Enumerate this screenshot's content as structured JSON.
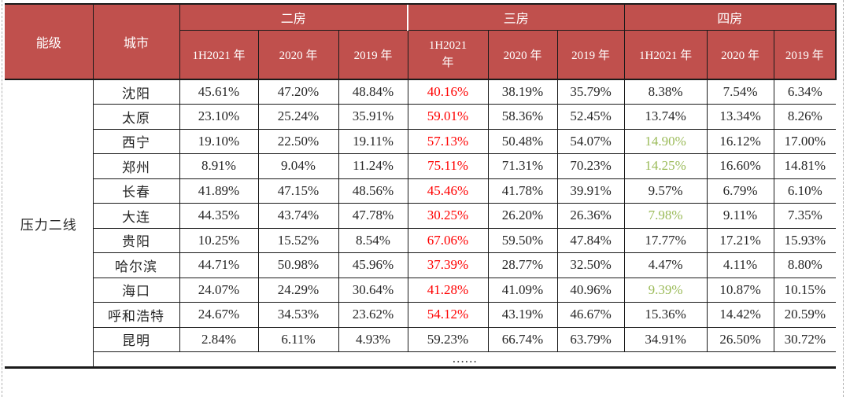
{
  "palette": {
    "header_bg": "#C0504D",
    "header_text": "#FFFFFF",
    "border": "#1A1A1A",
    "highlight_red": "#FF0000",
    "highlight_green": "#9BBB59",
    "body_text": "#262626",
    "guide": "#B3B3B3"
  },
  "chart_data": {
    "type": "table",
    "header": {
      "tier_label": "能级",
      "city_label": "城市",
      "groups": [
        {
          "label": "二房",
          "cols": [
            "1H2021 年",
            "2020 年",
            "2019 年"
          ]
        },
        {
          "label": "三房",
          "cols": [
            "1H2021 年",
            "2020 年",
            "2019 年"
          ]
        },
        {
          "label": "四房",
          "cols": [
            "1H2021 年",
            "2020 年",
            "2019 年"
          ]
        }
      ]
    },
    "tier_group": "压力二线",
    "rows": [
      {
        "city": "沈阳",
        "values": [
          "45.61%",
          "47.20%",
          "48.84%",
          "40.16%",
          "38.19%",
          "35.79%",
          "8.38%",
          "7.54%",
          "6.34%"
        ],
        "colors": [
          "",
          "",
          "",
          "red",
          "",
          "",
          "",
          "",
          ""
        ]
      },
      {
        "city": "太原",
        "values": [
          "23.10%",
          "25.24%",
          "35.91%",
          "59.01%",
          "58.36%",
          "52.45%",
          "13.74%",
          "13.34%",
          "8.26%"
        ],
        "colors": [
          "",
          "",
          "",
          "red",
          "",
          "",
          "",
          "",
          ""
        ]
      },
      {
        "city": "西宁",
        "values": [
          "19.10%",
          "22.50%",
          "19.11%",
          "57.13%",
          "50.48%",
          "54.07%",
          "14.90%",
          "16.12%",
          "17.00%"
        ],
        "colors": [
          "",
          "",
          "",
          "red",
          "",
          "",
          "green",
          "",
          ""
        ]
      },
      {
        "city": "郑州",
        "values": [
          "8.91%",
          "9.04%",
          "11.24%",
          "75.11%",
          "71.31%",
          "70.23%",
          "14.25%",
          "16.60%",
          "14.81%"
        ],
        "colors": [
          "",
          "",
          "",
          "red",
          "",
          "",
          "green",
          "",
          ""
        ]
      },
      {
        "city": "长春",
        "values": [
          "41.89%",
          "47.15%",
          "48.56%",
          "45.46%",
          "41.78%",
          "39.91%",
          "9.57%",
          "6.79%",
          "6.10%"
        ],
        "colors": [
          "",
          "",
          "",
          "red",
          "",
          "",
          "",
          "",
          ""
        ]
      },
      {
        "city": "大连",
        "values": [
          "44.35%",
          "43.74%",
          "47.78%",
          "30.25%",
          "26.20%",
          "26.36%",
          "7.98%",
          "9.11%",
          "7.35%"
        ],
        "colors": [
          "",
          "",
          "",
          "red",
          "",
          "",
          "green",
          "",
          ""
        ]
      },
      {
        "city": "贵阳",
        "values": [
          "10.25%",
          "15.52%",
          "8.54%",
          "67.06%",
          "59.50%",
          "47.84%",
          "17.77%",
          "17.21%",
          "15.93%"
        ],
        "colors": [
          "",
          "",
          "",
          "red",
          "",
          "",
          "",
          "",
          ""
        ]
      },
      {
        "city": "哈尔滨",
        "values": [
          "44.71%",
          "50.98%",
          "45.96%",
          "37.39%",
          "28.77%",
          "32.50%",
          "4.47%",
          "4.11%",
          "8.80%"
        ],
        "colors": [
          "",
          "",
          "",
          "red",
          "",
          "",
          "",
          "",
          ""
        ]
      },
      {
        "city": "海口",
        "values": [
          "24.07%",
          "24.29%",
          "30.64%",
          "41.28%",
          "41.09%",
          "40.96%",
          "9.39%",
          "10.87%",
          "10.15%"
        ],
        "colors": [
          "",
          "",
          "",
          "red",
          "",
          "",
          "green",
          "",
          ""
        ]
      },
      {
        "city": "呼和浩特",
        "values": [
          "24.67%",
          "34.53%",
          "23.62%",
          "54.12%",
          "43.19%",
          "46.67%",
          "15.36%",
          "14.42%",
          "20.59%"
        ],
        "colors": [
          "",
          "",
          "",
          "red",
          "",
          "",
          "",
          "",
          ""
        ]
      },
      {
        "city": "昆明",
        "values": [
          "2.84%",
          "6.11%",
          "4.93%",
          "59.23%",
          "66.74%",
          "63.79%",
          "34.91%",
          "26.50%",
          "30.72%"
        ],
        "colors": [
          "",
          "",
          "",
          "",
          "",
          "",
          "",
          "",
          ""
        ]
      }
    ],
    "ellipsis_row": "……"
  }
}
